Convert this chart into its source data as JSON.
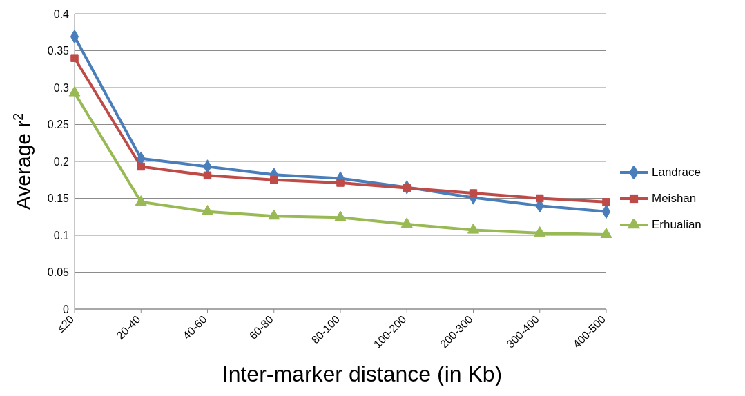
{
  "chart_data": {
    "type": "line",
    "xlabel": "Inter-marker distance (in Kb)",
    "ylabel": "Average r$^{2}$",
    "categories": [
      "≤20",
      "20-40",
      "40-60",
      "60-80",
      "80-100",
      "100-200",
      "200-300",
      "300-400",
      "400-500"
    ],
    "series": [
      {
        "name": "Landrace",
        "color": "#4a7ebb",
        "marker": "diamond",
        "values": [
          0.369,
          0.204,
          0.193,
          0.182,
          0.177,
          0.165,
          0.151,
          0.14,
          0.132
        ]
      },
      {
        "name": "Meishan",
        "color": "#be4b48",
        "marker": "square",
        "values": [
          0.34,
          0.193,
          0.181,
          0.175,
          0.171,
          0.164,
          0.157,
          0.15,
          0.145
        ]
      },
      {
        "name": "Erhualian",
        "color": "#98b954",
        "marker": "triangle",
        "values": [
          0.293,
          0.145,
          0.132,
          0.126,
          0.124,
          0.115,
          0.107,
          0.103,
          0.101
        ]
      }
    ],
    "ylim": [
      0,
      0.4
    ],
    "yticks": [
      0,
      0.05,
      0.1,
      0.15,
      0.2,
      0.25,
      0.3,
      0.35,
      0.4
    ],
    "grid": "y",
    "legend": "right",
    "line_style": "solid"
  }
}
